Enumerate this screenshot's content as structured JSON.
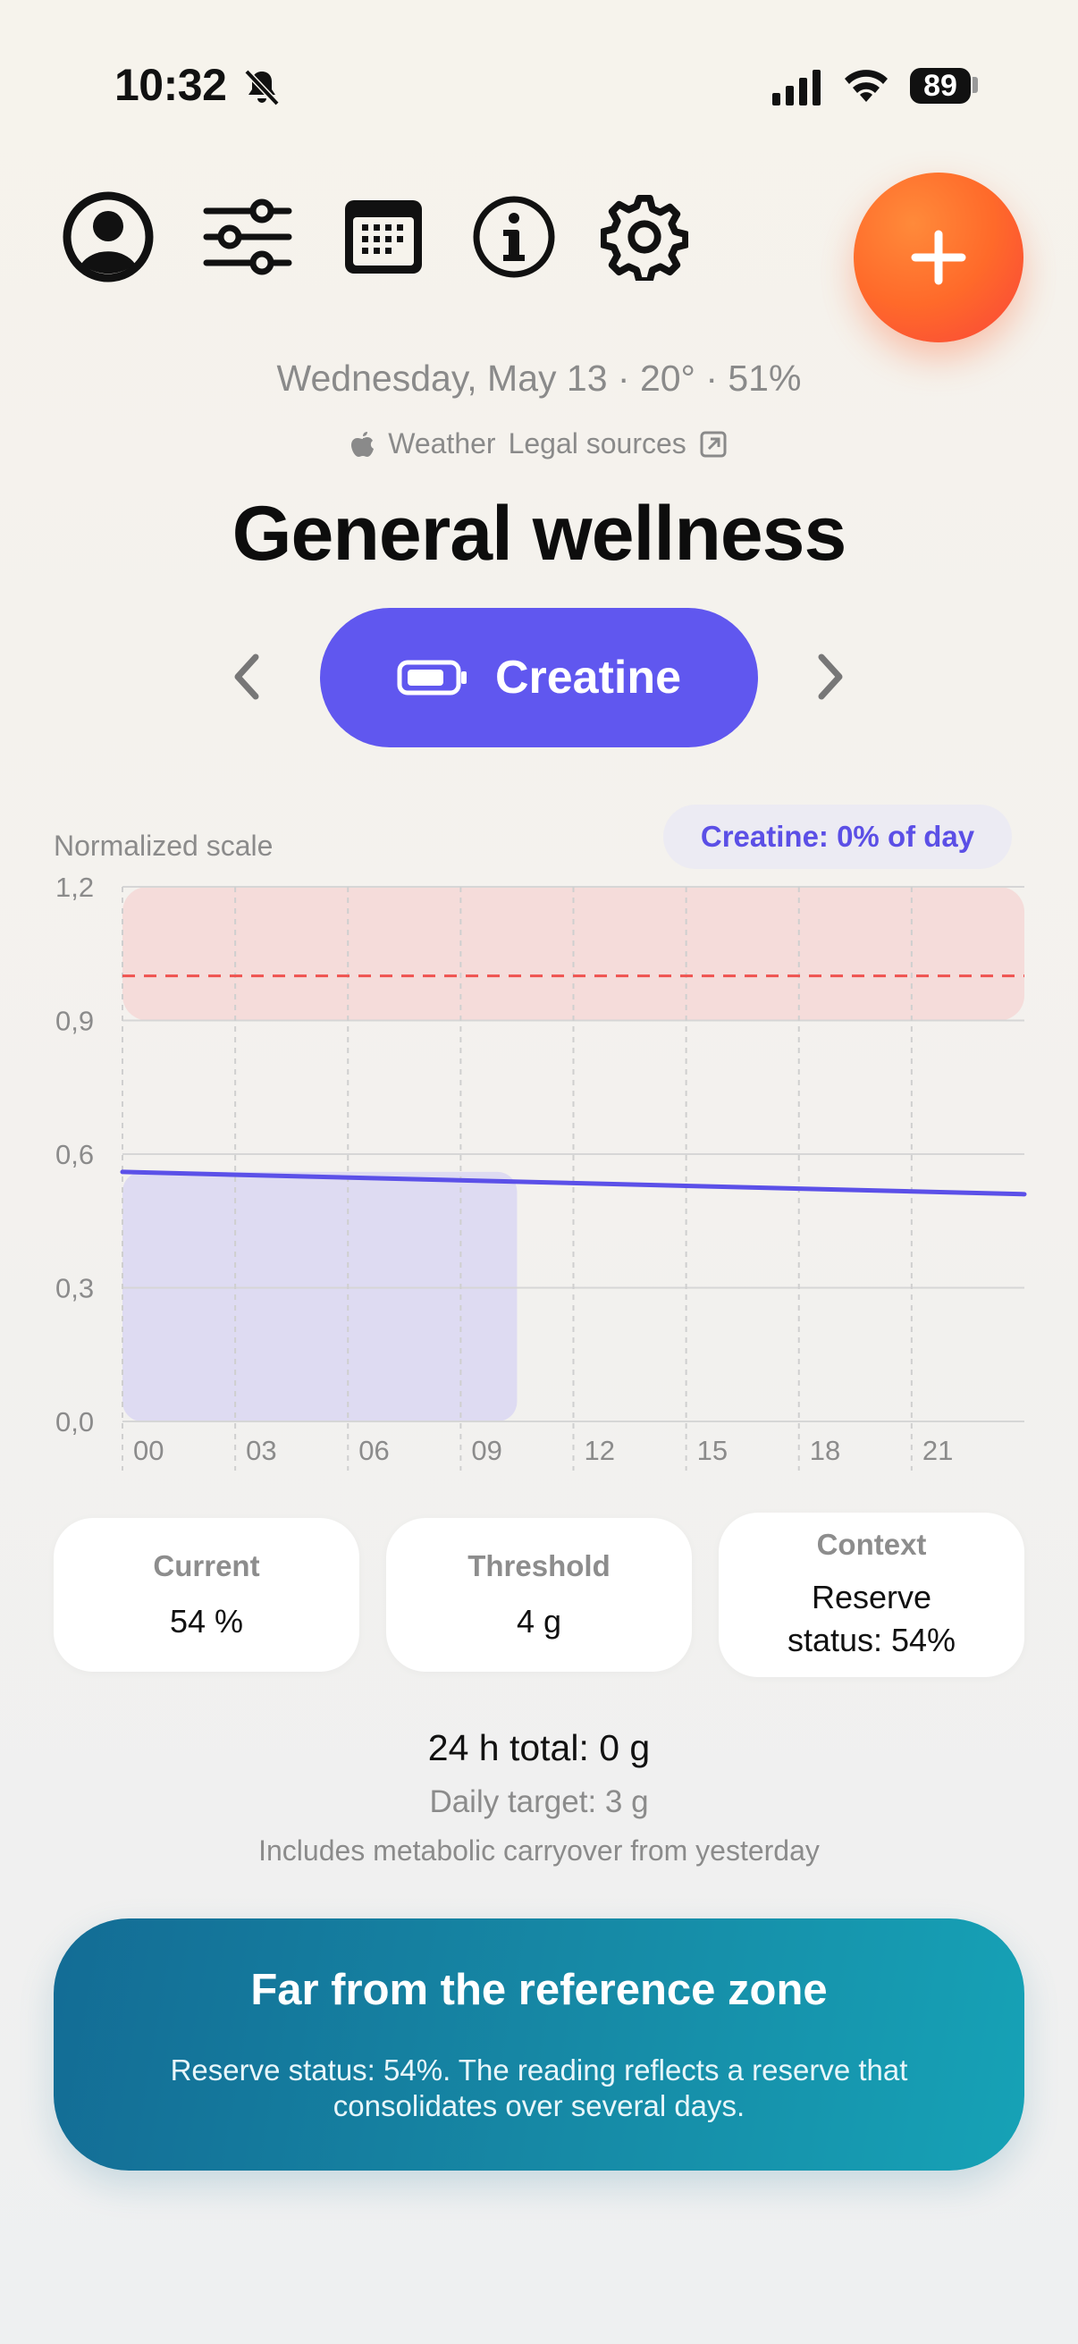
{
  "status_bar": {
    "time": "10:32",
    "battery": "89",
    "icons": [
      "bell-slash-icon",
      "cellular-signal-icon",
      "wifi-icon",
      "battery-icon"
    ]
  },
  "toolbar": {
    "icons": [
      "profile-icon",
      "sliders-icon",
      "calendar-icon",
      "info-icon",
      "gear-icon",
      "plus-icon"
    ]
  },
  "header": {
    "date_line": "Wednesday, May 13 · 20° · 51%",
    "weather_label": "Weather",
    "legal_sources": "Legal sources",
    "title": "General wellness"
  },
  "selector": {
    "label": "Creatine",
    "icon": "battery-icon"
  },
  "chart": {
    "scale_label": "Normalized scale",
    "chip": "Creatine: 0% of day"
  },
  "chart_data": {
    "type": "line",
    "x_ticks": [
      "00",
      "03",
      "06",
      "09",
      "12",
      "15",
      "18",
      "21"
    ],
    "y_ticks": [
      "0,0",
      "0,3",
      "0,6",
      "0,9",
      "1,2"
    ],
    "ylim": [
      0,
      1.2
    ],
    "xlim": [
      0,
      24
    ],
    "series": [
      {
        "x": [
          0,
          24
        ],
        "y": [
          0.56,
          0.51
        ]
      }
    ],
    "reference_line": 1.0,
    "shaded_band": [
      0.9,
      1.2
    ],
    "filled_area_until_hour": 10.5,
    "colors": {
      "line": "#5b50e8",
      "band": "#f5d8d6",
      "reference": "#ef5350",
      "area": "#dcd8f2"
    },
    "grid": true
  },
  "stats": [
    {
      "label": "Current",
      "value": "54 %"
    },
    {
      "label": "Threshold",
      "value": "4 g"
    },
    {
      "label": "Context",
      "value_line1": "Reserve",
      "value_line2": "status: 54%"
    }
  ],
  "summary": {
    "total": "24 h total: 0 g",
    "target": "Daily target: 3 g",
    "carryover": "Includes metabolic carryover from yesterday"
  },
  "banner": {
    "title": "Far from the reference zone",
    "text": "Reserve status: 54%. The reading reflects a reserve that consolidates over several days."
  }
}
